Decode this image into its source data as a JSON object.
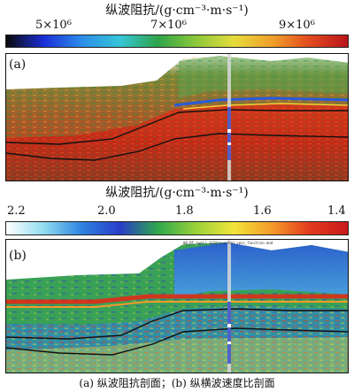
{
  "colorbar_a": {
    "title": "纵波阻抗/(g·cm⁻³·m·s⁻¹)",
    "ticks": [
      "5×10⁶",
      "7×10⁶",
      "9×10⁶"
    ],
    "colors": [
      "#0a0a0a",
      "#1b2fd8",
      "#2c8de8",
      "#36c6d8",
      "#2ea44a",
      "#8cc83a",
      "#e6dc3c",
      "#f0a02a",
      "#e24a1e",
      "#b8141a"
    ]
  },
  "colorbar_b": {
    "title": "纵波阻抗/(g·cm⁻³·m·s⁻¹)",
    "ticks": [
      "2.2",
      "2.0",
      "1.8",
      "1.6",
      "1.4"
    ],
    "colors": [
      "#ffffff",
      "#8fdcf0",
      "#2e82e0",
      "#2a3cc8",
      "#2fa84c",
      "#9ad23a",
      "#f2e43a",
      "#f59a2a",
      "#e23a1e",
      "#c81a1a"
    ]
  },
  "panel_a": {
    "label": "(a)"
  },
  "panel_b": {
    "label": "(b)",
    "header_text": "08_RT_twell_112$inverted_vpvs_function.mod"
  },
  "caption": "(a) 纵波阻抗剖面；(b) 纵横波速度比剖面"
}
